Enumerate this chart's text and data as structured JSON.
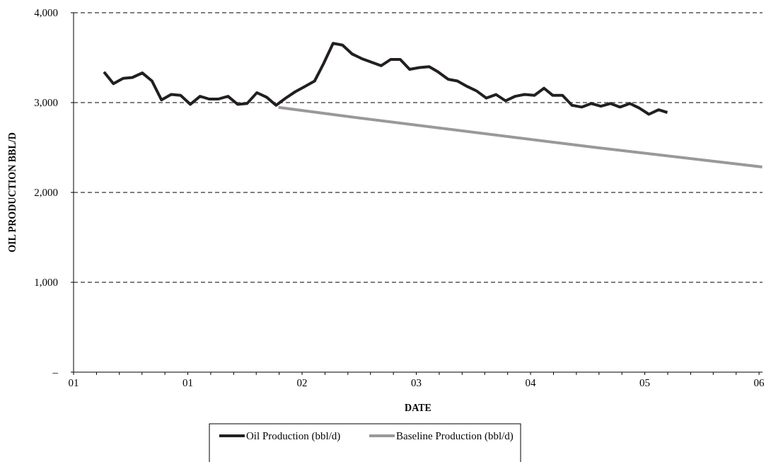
{
  "chart_data": {
    "type": "line",
    "xlabel": "DATE",
    "ylabel": "OIL PRODUCTION BBL/D",
    "xlim": [
      "2001-01-01",
      "2007-01-05"
    ],
    "ylim": [
      0,
      4000
    ],
    "xticks": [
      {
        "value": "2001-01-01",
        "label": "01"
      },
      {
        "value": "2001-03-15",
        "label": null
      },
      {
        "value": "2001-05-27",
        "label": null
      },
      {
        "value": "2001-08-07",
        "label": null
      },
      {
        "value": "2001-10-19",
        "label": null
      },
      {
        "value": "2001-12-31",
        "label": "01"
      },
      {
        "value": "2002-03-14",
        "label": null
      },
      {
        "value": "2002-05-26",
        "label": null
      },
      {
        "value": "2002-08-06",
        "label": null
      },
      {
        "value": "2002-10-18",
        "label": null
      },
      {
        "value": "2002-12-30",
        "label": "02"
      },
      {
        "value": "2003-03-13",
        "label": null
      },
      {
        "value": "2003-05-25",
        "label": null
      },
      {
        "value": "2003-08-05",
        "label": null
      },
      {
        "value": "2003-10-17",
        "label": null
      },
      {
        "value": "2003-12-29",
        "label": "03"
      },
      {
        "value": "2004-03-11",
        "label": null
      },
      {
        "value": "2004-05-23",
        "label": null
      },
      {
        "value": "2004-08-03",
        "label": null
      },
      {
        "value": "2004-10-15",
        "label": null
      },
      {
        "value": "2004-12-27",
        "label": "04"
      },
      {
        "value": "2005-03-10",
        "label": null
      },
      {
        "value": "2005-05-22",
        "label": null
      },
      {
        "value": "2005-08-02",
        "label": null
      },
      {
        "value": "2005-10-14",
        "label": null
      },
      {
        "value": "2005-12-26",
        "label": "05"
      },
      {
        "value": "2006-03-09",
        "label": null
      },
      {
        "value": "2006-05-21",
        "label": null
      },
      {
        "value": "2006-08-01",
        "label": null
      },
      {
        "value": "2006-10-13",
        "label": null
      },
      {
        "value": "2006-12-25",
        "label": "06"
      }
    ],
    "yticks": [
      {
        "value": 0,
        "label": "–"
      },
      {
        "value": 1000,
        "label": "1,000"
      },
      {
        "value": 2000,
        "label": "2,000"
      },
      {
        "value": 3000,
        "label": "3,000"
      },
      {
        "value": 4000,
        "label": "4,000"
      }
    ],
    "grid": "y",
    "legend": "bottom",
    "line_style": "solid",
    "marker": "none",
    "series": [
      {
        "name": "Oil Production (bbl/d)",
        "color": "#231f20",
        "x": [
          "2001-04-08",
          "2001-05-08",
          "2001-06-08",
          "2001-07-08",
          "2001-08-08",
          "2001-09-08",
          "2001-10-08",
          "2001-11-08",
          "2001-12-08",
          "2002-01-08",
          "2002-02-08",
          "2002-03-08",
          "2002-04-08",
          "2002-05-08",
          "2002-06-08",
          "2002-07-08",
          "2002-08-08",
          "2002-09-08",
          "2002-10-08",
          "2002-11-08",
          "2002-12-08",
          "2003-01-08",
          "2003-02-08",
          "2003-03-08",
          "2003-04-08",
          "2003-05-08",
          "2003-06-08",
          "2003-07-08",
          "2003-08-08",
          "2003-09-08",
          "2003-10-08",
          "2003-11-08",
          "2003-12-08",
          "2004-01-08",
          "2004-02-08",
          "2004-03-08",
          "2004-04-08",
          "2004-05-08",
          "2004-06-08",
          "2004-07-08",
          "2004-08-08",
          "2004-09-08",
          "2004-10-08",
          "2004-11-08",
          "2004-12-08",
          "2005-01-08",
          "2005-02-08",
          "2005-03-08",
          "2005-04-08",
          "2005-05-08",
          "2005-06-08",
          "2005-07-08",
          "2005-08-08",
          "2005-09-08",
          "2005-10-08",
          "2005-11-08",
          "2005-12-08",
          "2006-01-08",
          "2006-02-08",
          "2006-03-08"
        ],
        "values": [
          3340,
          3210,
          3270,
          3280,
          3330,
          3240,
          3030,
          3090,
          3080,
          2980,
          3070,
          3040,
          3040,
          3070,
          2980,
          2990,
          3110,
          3060,
          2970,
          3050,
          3120,
          3180,
          3240,
          3430,
          3660,
          3640,
          3540,
          3490,
          3450,
          3410,
          3480,
          3480,
          3370,
          3390,
          3400,
          3340,
          3260,
          3240,
          3180,
          3130,
          3050,
          3090,
          3020,
          3070,
          3090,
          3080,
          3160,
          3080,
          3080,
          2970,
          2950,
          2990,
          2960,
          2990,
          2950,
          2990,
          2940,
          2870,
          2920,
          2890
        ]
      },
      {
        "name": "Baseline Production (bbl/d)",
        "color": "#999999",
        "x": [
          "2002-10-16",
          "2003-05-01",
          "2005-07-19",
          "2007-01-04"
        ],
        "values": [
          2947,
          2856,
          2502,
          2283
        ]
      }
    ]
  }
}
